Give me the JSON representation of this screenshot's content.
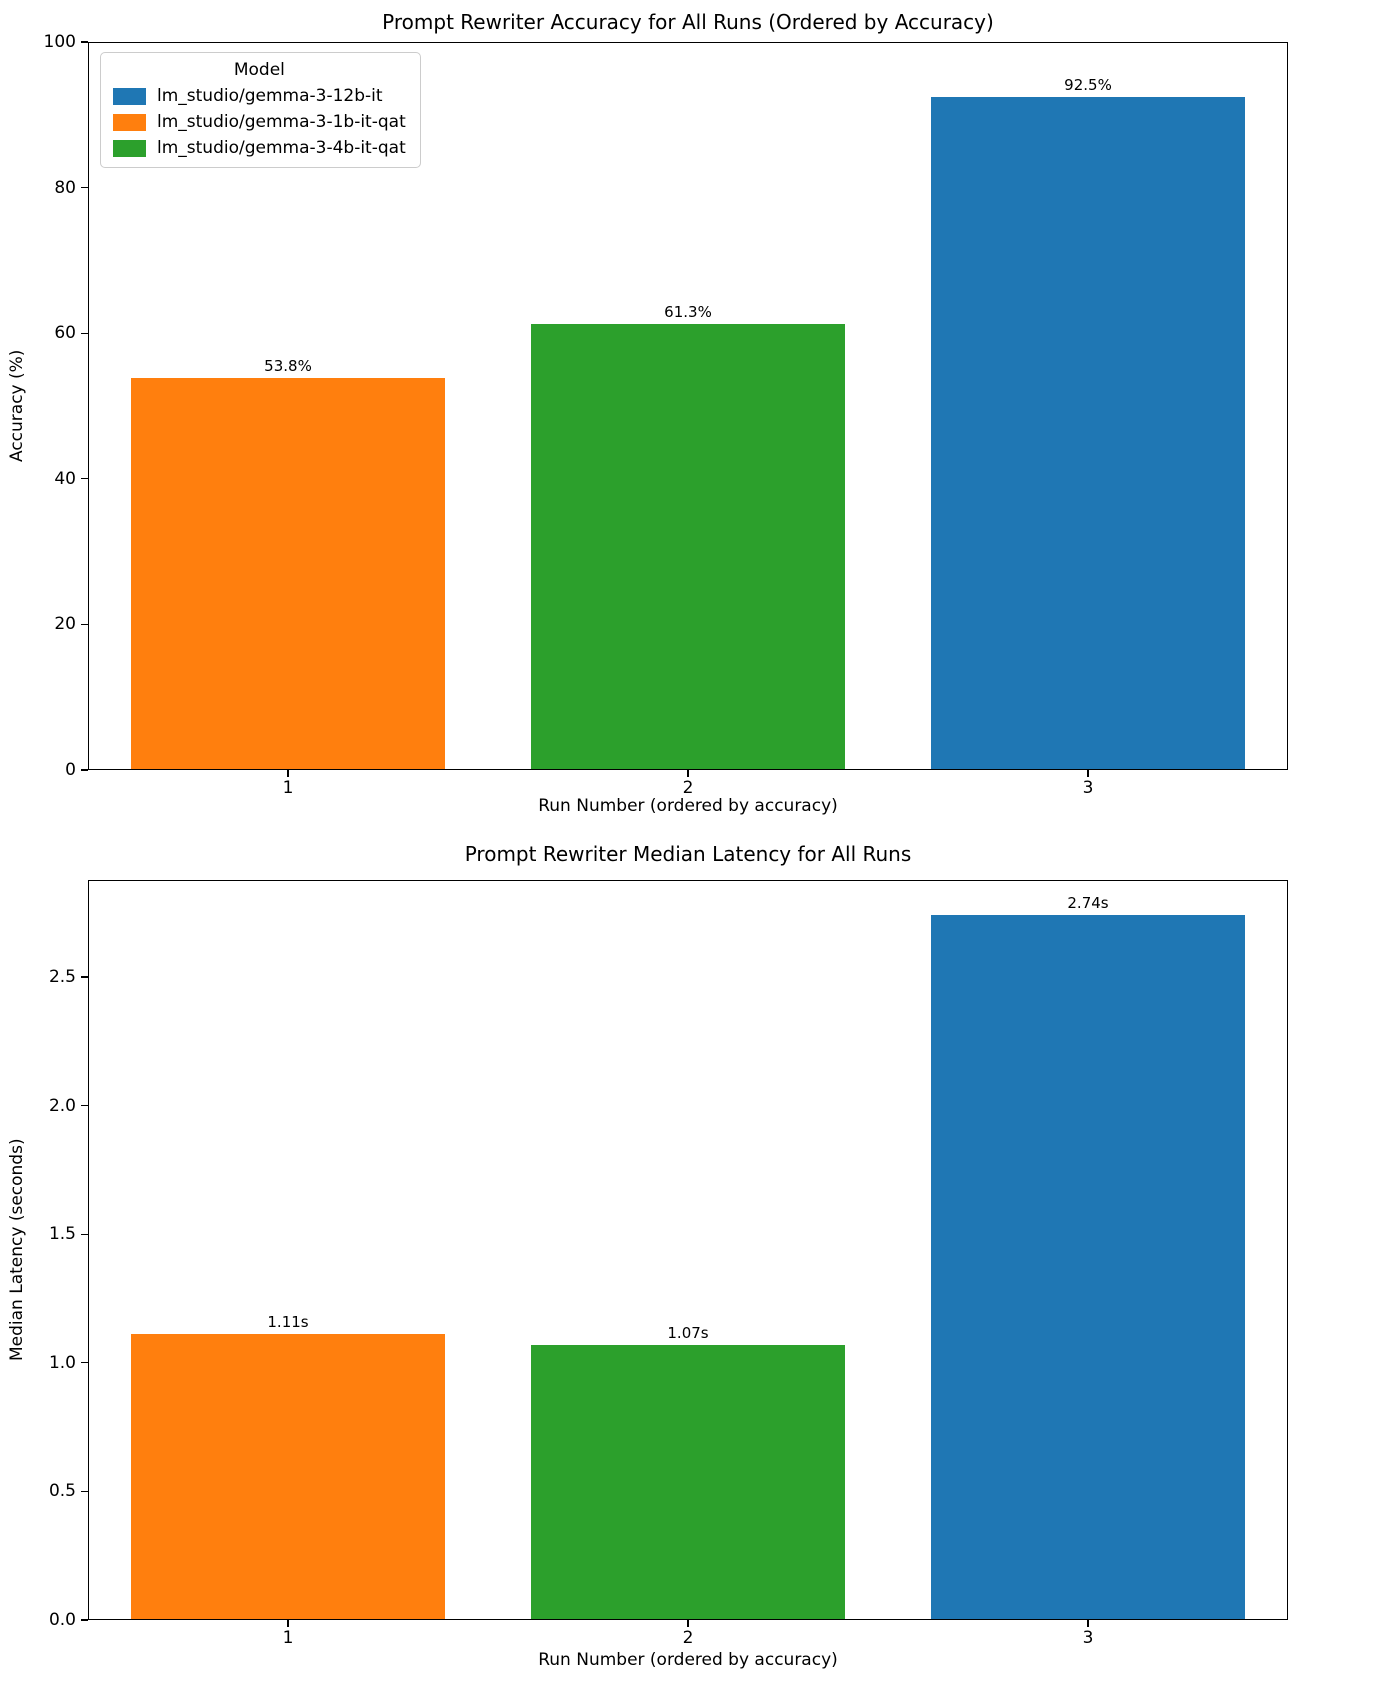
{
  "colors": {
    "blue": "#1f77b4",
    "orange": "#ff7f0e",
    "green": "#2ca02c",
    "background": "#ffffff",
    "text": "#000000"
  },
  "legend": {
    "title": "Model",
    "entries": [
      {
        "label": "lm_studio/gemma-3-12b-it",
        "color": "#1f77b4"
      },
      {
        "label": "lm_studio/gemma-3-1b-it-qat",
        "color": "#ff7f0e"
      },
      {
        "label": "lm_studio/gemma-3-4b-it-qat",
        "color": "#2ca02c"
      }
    ]
  },
  "chart_data": [
    {
      "type": "bar",
      "title": "Prompt Rewriter Accuracy for All Runs (Ordered by Accuracy)",
      "xlabel": "Run Number (ordered by accuracy)",
      "ylabel": "Accuracy (%)",
      "categories": [
        "1",
        "2",
        "3"
      ],
      "values": [
        53.8,
        61.3,
        92.5
      ],
      "bar_labels": [
        "53.8%",
        "61.3%",
        "92.5%"
      ],
      "bar_colors": [
        "#ff7f0e",
        "#2ca02c",
        "#1f77b4"
      ],
      "series_names": [
        "lm_studio/gemma-3-1b-it-qat",
        "lm_studio/gemma-3-4b-it-qat",
        "lm_studio/gemma-3-12b-it"
      ],
      "yticks": [
        0,
        20,
        40,
        60,
        80,
        100
      ],
      "ytick_labels": [
        "0",
        "20",
        "40",
        "60",
        "80",
        "100"
      ],
      "ylim": [
        0,
        100
      ],
      "grid": false,
      "legend_position": "upper left"
    },
    {
      "type": "bar",
      "title": "Prompt Rewriter Median Latency for All Runs",
      "xlabel": "Run Number (ordered by accuracy)",
      "ylabel": "Median Latency (seconds)",
      "categories": [
        "1",
        "2",
        "3"
      ],
      "values": [
        1.11,
        1.07,
        2.74
      ],
      "bar_labels": [
        "1.11s",
        "1.07s",
        "2.74s"
      ],
      "bar_colors": [
        "#ff7f0e",
        "#2ca02c",
        "#1f77b4"
      ],
      "series_names": [
        "lm_studio/gemma-3-1b-it-qat",
        "lm_studio/gemma-3-4b-it-qat",
        "lm_studio/gemma-3-12b-it"
      ],
      "yticks": [
        0.0,
        0.5,
        1.0,
        1.5,
        2.0,
        2.5
      ],
      "ytick_labels": [
        "0.0",
        "0.5",
        "1.0",
        "1.5",
        "2.0",
        "2.5"
      ],
      "ylim": [
        0,
        2.877
      ],
      "grid": false,
      "legend_position": "none"
    }
  ]
}
